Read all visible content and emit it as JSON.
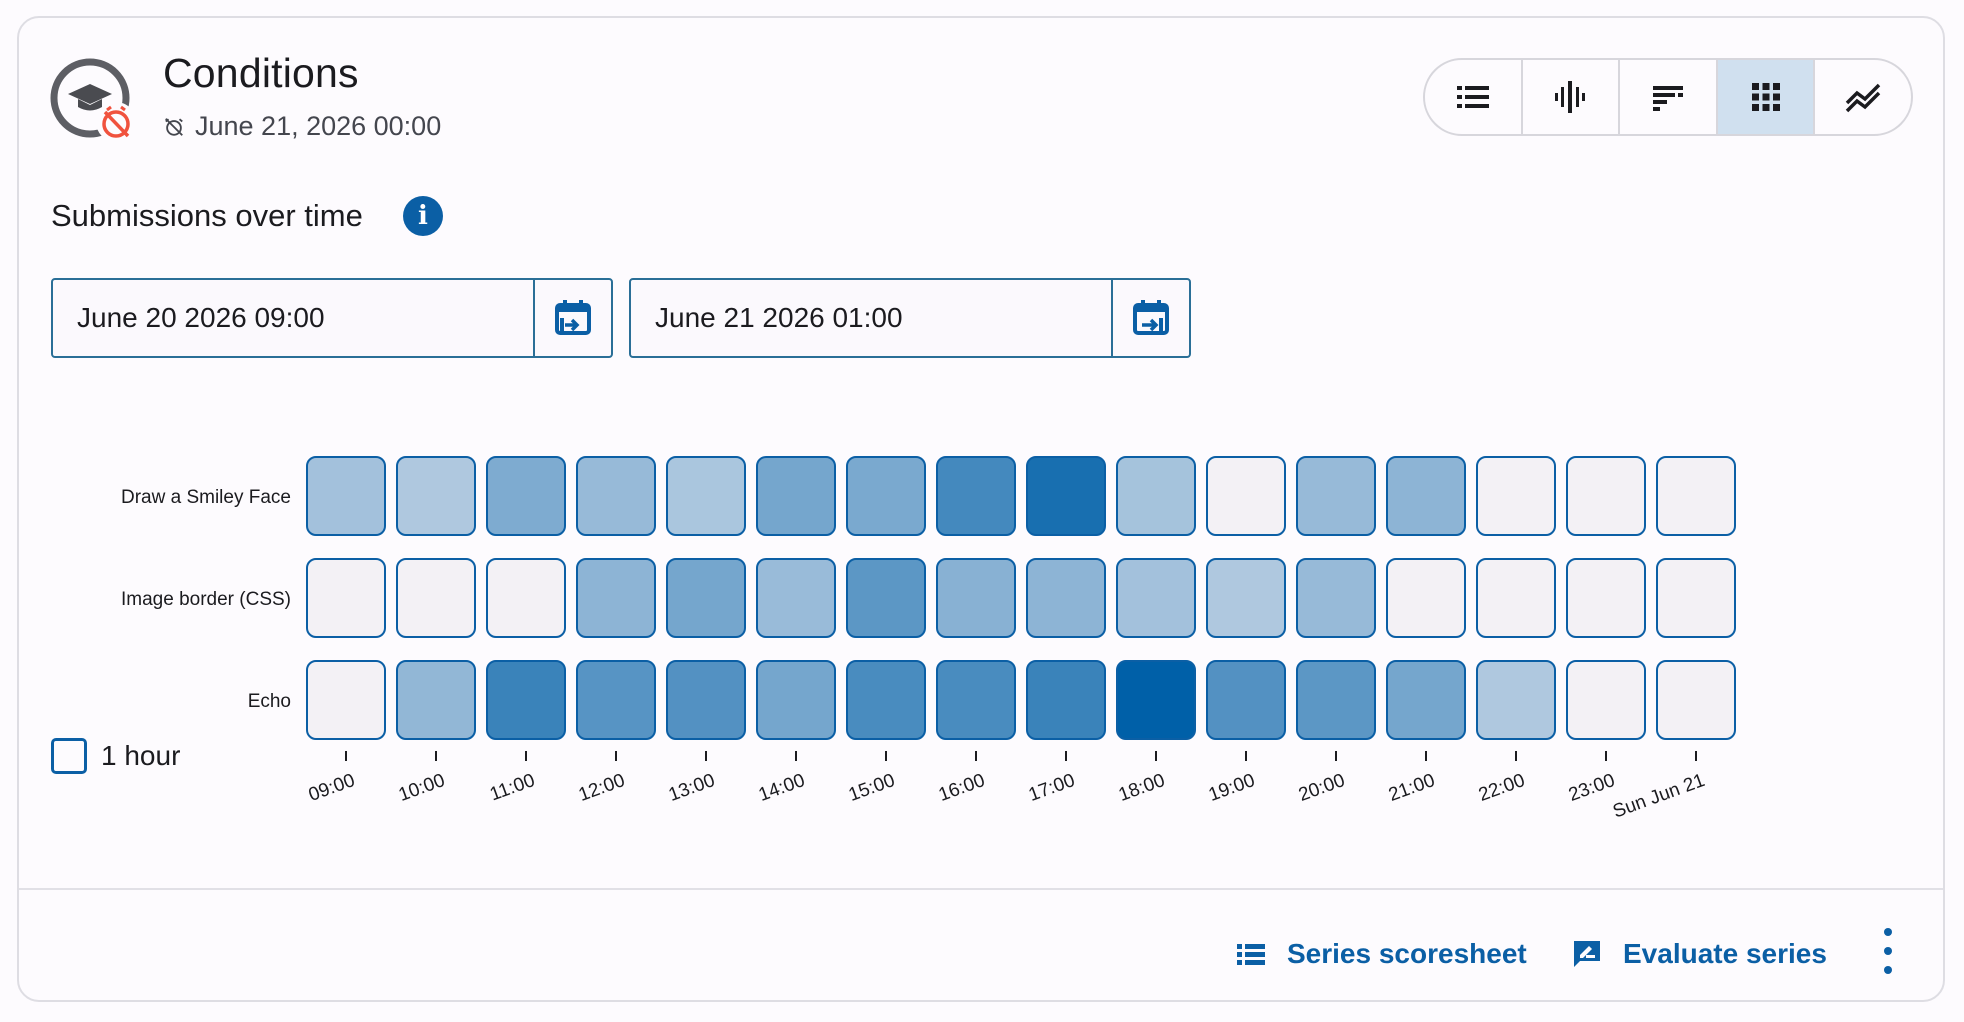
{
  "header": {
    "title": "Conditions",
    "deadline": "June 21, 2026 00:00"
  },
  "view_switcher": {
    "buttons": [
      {
        "icon": "list-icon",
        "active": false
      },
      {
        "icon": "violin-icon",
        "active": false
      },
      {
        "icon": "sorted-bars-icon",
        "active": false
      },
      {
        "icon": "grid-icon",
        "active": true
      },
      {
        "icon": "trend-lines-icon",
        "active": false
      }
    ]
  },
  "section": {
    "title": "Submissions over time"
  },
  "filters": {
    "start": "June 20 2026 09:00",
    "end": "June 21 2026 01:00"
  },
  "checkbox": {
    "label": "1 hour",
    "checked": false
  },
  "actions": {
    "scoresheet": "Series scoresheet",
    "evaluate": "Evaluate series"
  },
  "colors": {
    "accent": "#0b5fa5",
    "cell_low": "#f3f1f5",
    "cell_high": "#0060a8"
  },
  "chart_data": {
    "type": "heatmap",
    "rows": [
      "Draw a Smiley Face",
      "Image border (CSS)",
      "Echo"
    ],
    "columns": [
      "09:00",
      "10:00",
      "11:00",
      "12:00",
      "13:00",
      "14:00",
      "15:00",
      "16:00",
      "17:00",
      "18:00",
      "19:00",
      "20:00",
      "21:00",
      "22:00",
      "23:00",
      "Sun Jun 21"
    ],
    "values": [
      [
        0.33,
        0.28,
        0.48,
        0.38,
        0.3,
        0.52,
        0.5,
        0.72,
        0.9,
        0.32,
        0.0,
        0.38,
        0.42,
        0.0,
        0.0,
        0.0
      ],
      [
        0.0,
        0.0,
        0.0,
        0.42,
        0.52,
        0.37,
        0.62,
        0.44,
        0.42,
        0.33,
        0.28,
        0.38,
        0.0,
        0.0,
        0.0,
        0.0
      ],
      [
        0.0,
        0.4,
        0.76,
        0.64,
        0.66,
        0.52,
        0.7,
        0.7,
        0.76,
        1.0,
        0.66,
        0.62,
        0.52,
        0.28,
        0.0,
        0.0
      ]
    ],
    "scale": [
      0,
      1
    ]
  }
}
